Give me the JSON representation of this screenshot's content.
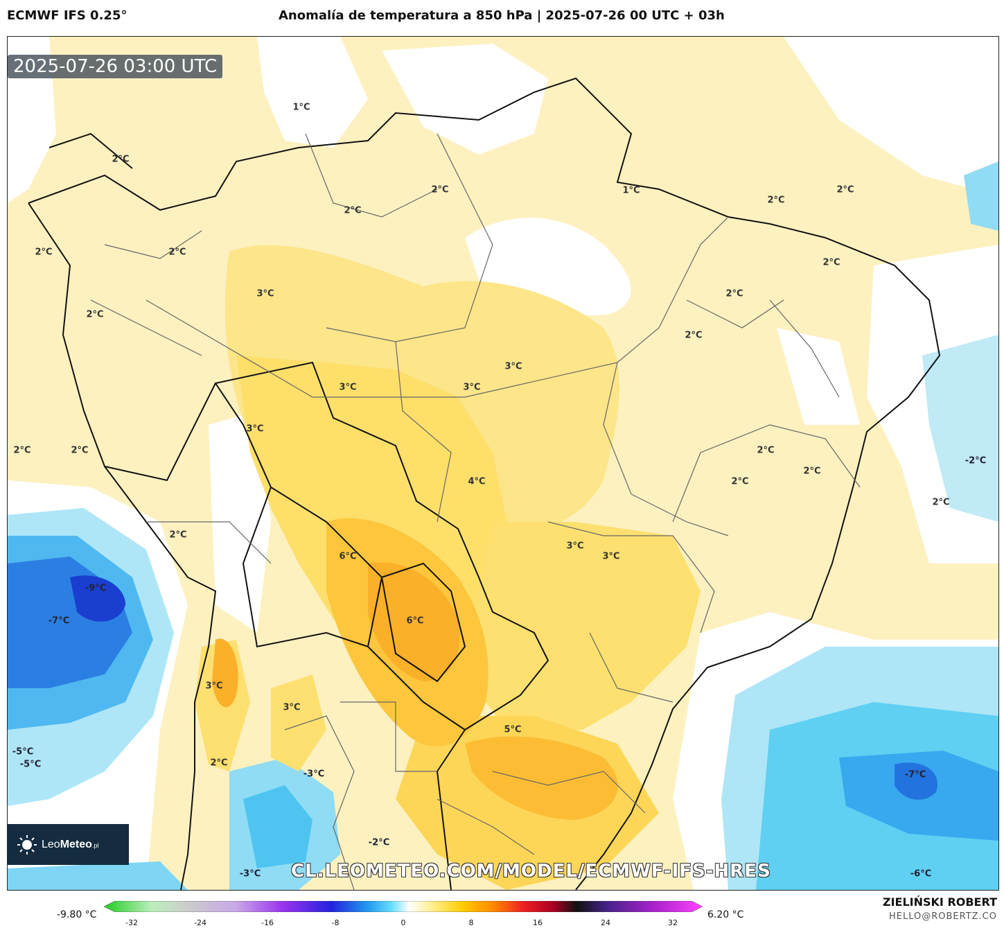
{
  "header": {
    "model": "ECMWF IFS 0.25°",
    "title": "Anomalía de temperatura a 850 hPa | 2025-07-26 00 UTC + 03h"
  },
  "timestamp": "2025-07-26 03:00 UTC",
  "watermark": "CL.LEOMETEO.COM/MODEL/ECMWF-IFS-HRES",
  "logo": {
    "name_a": "Leo",
    "name_b": "Meteo",
    "suffix": ".pl",
    "icon": "sun-icon"
  },
  "credits": {
    "author": "ZIELIŃSKI ROBERT",
    "email": "HELLO@ROBERTZ.CO"
  },
  "colorbar": {
    "min_label": "-9.80 °C",
    "max_label": "6.20 °C",
    "ticks": [
      "-32",
      "-24",
      "-16",
      "-8",
      "0",
      "8",
      "16",
      "24",
      "32"
    ],
    "colors": [
      "#22cc22",
      "#bbeebb",
      "#cccccc",
      "#c8a8e8",
      "#9933ee",
      "#2222dd",
      "#2299ee",
      "#66ddff",
      "#ffffff",
      "#ffee88",
      "#ffcc00",
      "#ff8800",
      "#ee2222",
      "#aa0022",
      "#111111",
      "#442288",
      "#aa22cc",
      "#ff44ff"
    ]
  },
  "map_labels": [
    {
      "text": "1°C"
    },
    {
      "text": "1°C"
    },
    {
      "text": "2°C"
    },
    {
      "text": "2°C"
    },
    {
      "text": "2°C"
    },
    {
      "text": "2°C"
    },
    {
      "text": "2°C"
    },
    {
      "text": "2°C"
    },
    {
      "text": "2°C"
    },
    {
      "text": "3°C"
    },
    {
      "text": "2°C"
    },
    {
      "text": "2°C"
    },
    {
      "text": "2°C"
    },
    {
      "text": "3°C"
    },
    {
      "text": "3°C"
    },
    {
      "text": "3°C"
    },
    {
      "text": "3°C"
    },
    {
      "text": "2°C"
    },
    {
      "text": "2°C"
    },
    {
      "text": "2°C"
    },
    {
      "text": "2°C"
    },
    {
      "text": "2°C"
    },
    {
      "text": "2°C"
    },
    {
      "text": "-2°C"
    },
    {
      "text": "2°C"
    },
    {
      "text": "4°C"
    },
    {
      "text": "6°C"
    },
    {
      "text": "3°C"
    },
    {
      "text": "3°C"
    },
    {
      "text": "2°C"
    },
    {
      "text": "-9°C"
    },
    {
      "text": "-7°C"
    },
    {
      "text": "6°C"
    },
    {
      "text": "3°C"
    },
    {
      "text": "3°C"
    },
    {
      "text": "5°C"
    },
    {
      "text": "-5°C"
    },
    {
      "text": "-5°C"
    },
    {
      "text": "2°C"
    },
    {
      "text": "-3°C"
    },
    {
      "text": "-7°C"
    },
    {
      "text": "-2°C"
    },
    {
      "text": "-3°C"
    },
    {
      "text": "-6°C"
    }
  ]
}
